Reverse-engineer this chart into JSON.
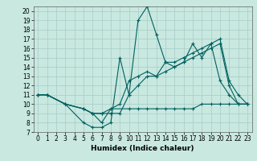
{
  "xlabel": "Humidex (Indice chaleur)",
  "ylabel": "",
  "xlim": [
    -0.5,
    23.5
  ],
  "ylim": [
    7,
    20.5
  ],
  "xticks": [
    0,
    1,
    2,
    3,
    4,
    5,
    6,
    7,
    8,
    9,
    10,
    11,
    12,
    13,
    14,
    15,
    16,
    17,
    18,
    19,
    20,
    21,
    22,
    23
  ],
  "yticks": [
    7,
    8,
    9,
    10,
    11,
    12,
    13,
    14,
    15,
    16,
    17,
    18,
    19,
    20
  ],
  "bg_color": "#c8e8e0",
  "grid_color": "#a8ccc8",
  "line_color": "#006060",
  "lines": [
    {
      "x": [
        0,
        1,
        3,
        5,
        6,
        7,
        8,
        9,
        10,
        11,
        12,
        13,
        14,
        15,
        16,
        17,
        18,
        19,
        20,
        21,
        22,
        23
      ],
      "y": [
        11,
        11,
        10,
        8,
        7.5,
        7.5,
        8,
        15,
        11,
        19,
        20.5,
        17.5,
        14.5,
        14,
        14.5,
        16.5,
        15,
        16.5,
        12.5,
        11,
        10,
        10
      ]
    },
    {
      "x": [
        0,
        1,
        3,
        5,
        6,
        7,
        8,
        9,
        10,
        11,
        12,
        13,
        14,
        15,
        16,
        17,
        18,
        19,
        20,
        21,
        22,
        23
      ],
      "y": [
        11,
        11,
        10,
        9.5,
        9,
        9,
        9.5,
        10,
        12.5,
        13,
        13.5,
        13,
        14.5,
        14.5,
        15,
        15.5,
        16,
        16.5,
        17,
        12.5,
        11,
        10
      ]
    },
    {
      "x": [
        0,
        1,
        3,
        5,
        6,
        7,
        8,
        9,
        10,
        11,
        12,
        13,
        14,
        15,
        16,
        17,
        18,
        19,
        20,
        21,
        22,
        23
      ],
      "y": [
        11,
        11,
        10,
        9.5,
        9,
        9,
        9,
        9,
        11,
        12,
        13,
        13,
        13.5,
        14,
        14.5,
        15,
        15.5,
        16,
        16.5,
        12,
        10,
        10
      ]
    },
    {
      "x": [
        0,
        1,
        3,
        5,
        6,
        7,
        8,
        10,
        11,
        12,
        13,
        14,
        15,
        16,
        17,
        18,
        19,
        20,
        21,
        22,
        23
      ],
      "y": [
        11,
        11,
        10,
        9.5,
        9,
        8,
        9.5,
        9.5,
        9.5,
        9.5,
        9.5,
        9.5,
        9.5,
        9.5,
        9.5,
        10,
        10,
        10,
        10,
        10,
        10
      ]
    }
  ]
}
